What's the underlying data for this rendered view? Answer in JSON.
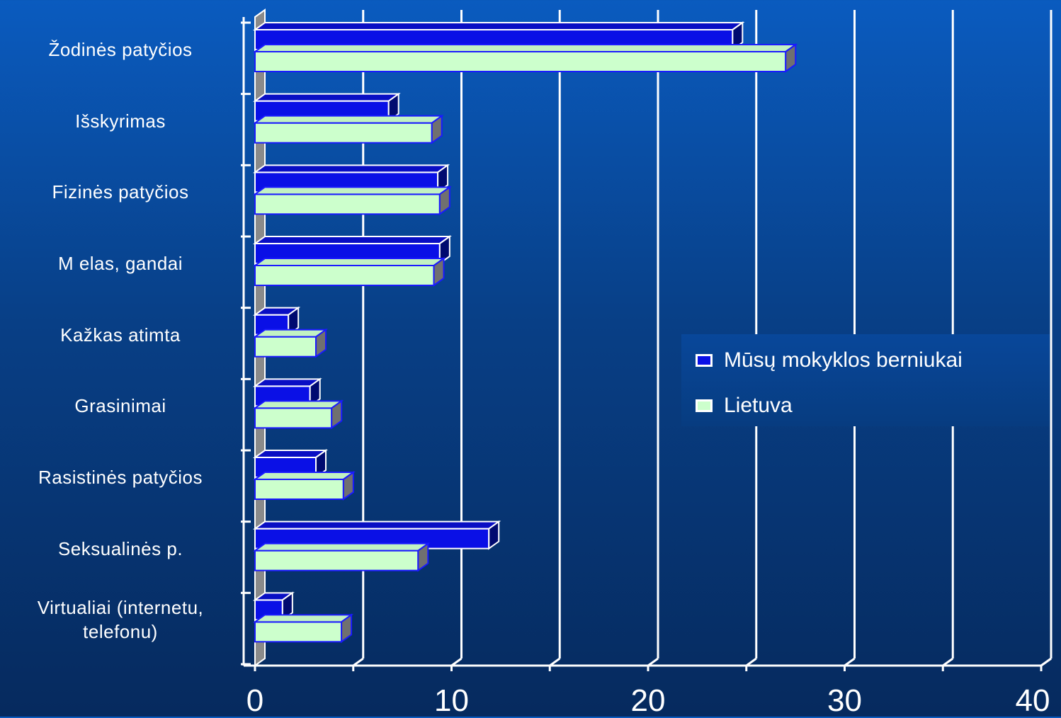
{
  "chart_data": {
    "type": "bar",
    "orientation": "horizontal",
    "categories": [
      "Žodinės patyčios",
      "Išskyrimas",
      "Fizinės patyčios",
      "M elas, gandai",
      "Kažkas atimta",
      "Grasinimai",
      "Rasistinės patyčios",
      "Seksualinės p.",
      "Virtualiai (internetu, telefonu)"
    ],
    "series": [
      {
        "name": "Mūsų mokyklos berniukai",
        "color": "#0a10e6",
        "values": [
          24.3,
          6.8,
          9.3,
          9.4,
          1.7,
          2.8,
          3.1,
          11.9,
          1.4
        ]
      },
      {
        "name": "Lietuva",
        "color": "#ccffcc",
        "values": [
          27.0,
          9.0,
          9.4,
          9.1,
          3.1,
          3.9,
          4.5,
          8.3,
          4.4
        ]
      }
    ],
    "xlim": [
      0,
      40
    ],
    "xticks": [
      "0",
      "10",
      "20",
      "30",
      "40"
    ],
    "grid": true,
    "legend_position": "right-middle",
    "three_d": true
  },
  "colors": {
    "background_top": "#0a5bbf",
    "background_bottom": "#062a5e",
    "grid": "#ffffff",
    "series1": "#0a10e6",
    "series2": "#ccffcc"
  }
}
